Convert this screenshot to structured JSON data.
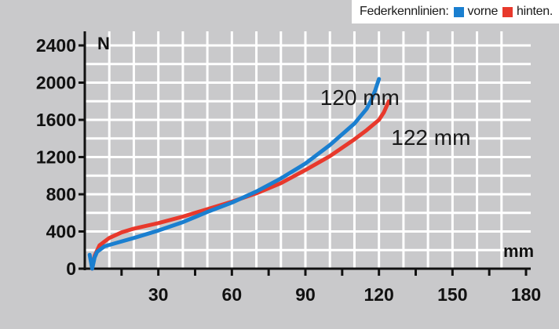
{
  "legend": {
    "title": "Federkennlinien:",
    "items": [
      {
        "label": "vorne",
        "color": "#1a7fd0"
      },
      {
        "label": "hinten.",
        "color": "#e8392c"
      }
    ]
  },
  "chart_data": {
    "type": "line",
    "title": "Federkennlinien",
    "xlabel": "mm",
    "ylabel": "N",
    "xlim": [
      0,
      180
    ],
    "ylim": [
      0,
      2400
    ],
    "x_ticks": [
      30,
      60,
      90,
      120,
      150,
      180
    ],
    "y_ticks": [
      0,
      400,
      800,
      1200,
      1600,
      2000,
      2400
    ],
    "grid": true,
    "legend_position": "top-right",
    "series": [
      {
        "name": "vorne",
        "color": "#1a7fd0",
        "x": [
          2,
          3,
          4,
          5,
          8,
          12,
          20,
          30,
          40,
          50,
          60,
          70,
          80,
          90,
          100,
          110,
          115,
          117,
          118.5,
          119.5,
          120
        ],
        "y": [
          150,
          0,
          120,
          180,
          240,
          270,
          330,
          410,
          500,
          610,
          710,
          830,
          970,
          1130,
          1330,
          1560,
          1720,
          1820,
          1920,
          2000,
          2040
        ]
      },
      {
        "name": "hinten.",
        "color": "#e8392c",
        "x": [
          3,
          4,
          6,
          10,
          15,
          20,
          30,
          40,
          50,
          60,
          70,
          80,
          90,
          100,
          110,
          115,
          120,
          122,
          124
        ],
        "y": [
          0,
          140,
          250,
          330,
          390,
          430,
          490,
          560,
          640,
          720,
          810,
          920,
          1060,
          1210,
          1390,
          1490,
          1600,
          1680,
          1800
        ]
      }
    ],
    "annotations": [
      {
        "text": "120 mm",
        "x": 96,
        "y": 1760
      },
      {
        "text": "122 mm",
        "x": 125,
        "y": 1330
      }
    ]
  }
}
